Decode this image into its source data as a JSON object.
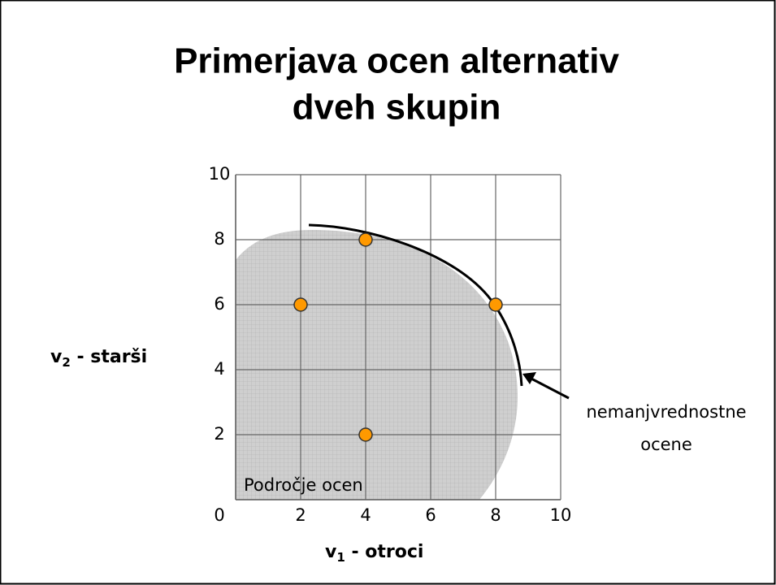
{
  "chart_data": {
    "type": "scatter",
    "title_lines": [
      "Primerjava ocen alternativ",
      "dveh skupin"
    ],
    "xlabel": {
      "base": "v",
      "sub": "1",
      "rest": " - otroci"
    },
    "ylabel": {
      "base": "v",
      "sub": "2",
      "rest": " - starši"
    },
    "annotations": {
      "frontier": [
        "nemanjvrednostne",
        "ocene"
      ],
      "region": "Področje ocen"
    },
    "x": [
      4,
      2,
      8,
      4
    ],
    "values": [
      8,
      6,
      6,
      2
    ],
    "color": "#ff9900",
    "xlim": [
      0,
      10
    ],
    "ylim": [
      0,
      10
    ],
    "xticks": [
      2,
      4,
      6,
      8,
      10
    ],
    "yticks": [
      0,
      2,
      4,
      6,
      8,
      10
    ],
    "grid": true
  }
}
